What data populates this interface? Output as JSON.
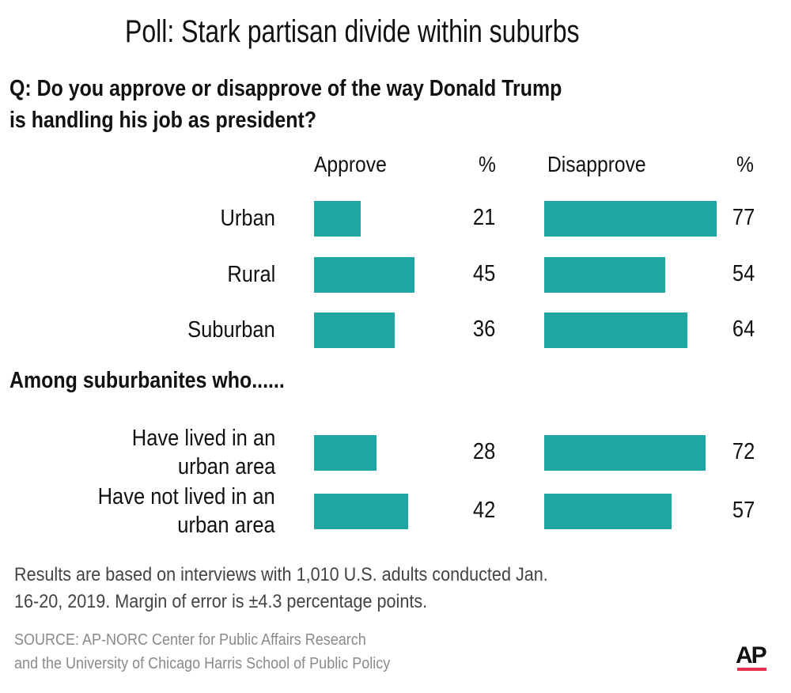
{
  "title": "Poll: Stark partisan divide within suburbs",
  "question": [
    "Q:  Do you approve or disapprove of the way Donald Trump",
    "is handling his job as president?"
  ],
  "subheading": "Among suburbanites who......",
  "note": [
    "Results are based on interviews with 1,010 U.S. adults conducted Jan.",
    "16-20, 2019. Margin of error is ±4.3 percentage points."
  ],
  "source": [
    "SOURCE: AP-NORC Center for Public Affairs Research",
    "and the University of Chicago Harris School of Public Policy"
  ],
  "logo": "AP",
  "colors": {
    "bar": "#1fa5a3",
    "logo_line": "#e8314b"
  },
  "chart_data": {
    "type": "bar",
    "orientation": "horizontal",
    "column_headers": {
      "approve": "Approve",
      "disapprove": "Disapprove",
      "unit": "%"
    },
    "categories": [
      "Urban",
      "Rural",
      "Suburban",
      "Have lived in an\nurban area",
      "Have not lived in an\nurban area"
    ],
    "series": [
      {
        "name": "Approve",
        "values": [
          21,
          45,
          36,
          28,
          42
        ]
      },
      {
        "name": "Disapprove",
        "values": [
          77,
          54,
          64,
          72,
          57
        ]
      }
    ]
  }
}
